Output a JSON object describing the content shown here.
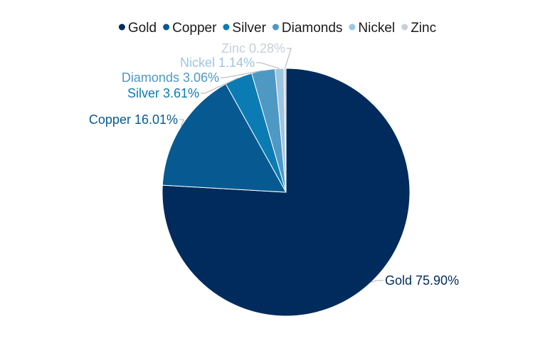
{
  "chart_data": {
    "type": "pie",
    "title": "",
    "legend_position": "top",
    "series": [
      {
        "name": "Gold",
        "value": 75.9,
        "label": "Gold 75.90%",
        "color": "#002b5c"
      },
      {
        "name": "Copper",
        "value": 16.01,
        "label": "Copper 16.01%",
        "color": "#065a91"
      },
      {
        "name": "Silver",
        "value": 3.61,
        "label": "Silver 3.61%",
        "color": "#0a7cb3"
      },
      {
        "name": "Diamonds",
        "value": 3.06,
        "label": "Diamonds 3.06%",
        "color": "#4e98c4"
      },
      {
        "name": "Nickel",
        "value": 1.14,
        "label": "Nickel 1.14%",
        "color": "#9ec5df"
      },
      {
        "name": "Zinc",
        "value": 0.28,
        "label": "Zinc 0.28%",
        "color": "#c7cfd8"
      }
    ]
  }
}
